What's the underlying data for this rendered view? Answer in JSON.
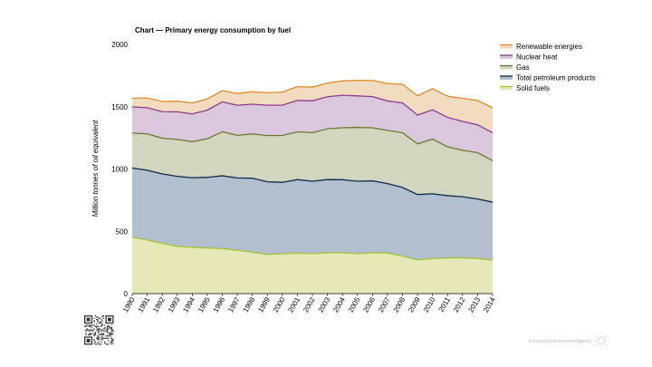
{
  "chart_data": {
    "type": "area",
    "stacked": true,
    "title": "Chart — Primary energy consumption by fuel",
    "ylabel": "Million tonnes of oil equivalent",
    "xlabel": "",
    "ylim": [
      0,
      2000
    ],
    "yticks": [
      0,
      500,
      1000,
      1500,
      2000
    ],
    "grid": false,
    "legend_position": "top-right",
    "x": [
      "1990",
      "1991",
      "1992",
      "1993",
      "1994",
      "1995",
      "1996",
      "1997",
      "1998",
      "1999",
      "2000",
      "2001",
      "2002",
      "2003",
      "2004",
      "2005",
      "2006",
      "2007",
      "2008",
      "2009",
      "2010",
      "2011",
      "2012",
      "2013",
      "2014"
    ],
    "series": [
      {
        "name": "Solid fuels",
        "fill": "#e6e8b8",
        "line": "#a9c238",
        "values": [
          452,
          431,
          403,
          379,
          371,
          366,
          361,
          347,
          332,
          315,
          320,
          324,
          320,
          329,
          328,
          320,
          328,
          326,
          301,
          270,
          282,
          286,
          287,
          281,
          268
        ]
      },
      {
        "name": "Total petroleum products",
        "fill": "#b1bfcf",
        "line": "#0d2b4a",
        "values": [
          556,
          559,
          558,
          562,
          559,
          567,
          585,
          581,
          594,
          582,
          573,
          591,
          582,
          586,
          586,
          582,
          577,
          557,
          551,
          525,
          519,
          500,
          490,
          478,
          466
        ]
      },
      {
        "name": "Gas",
        "fill": "#d2d6bf",
        "line": "#6b7a32",
        "values": [
          280,
          292,
          286,
          296,
          289,
          310,
          353,
          342,
          356,
          371,
          376,
          383,
          390,
          408,
          417,
          432,
          426,
          427,
          439,
          407,
          439,
          392,
          373,
          372,
          333
        ]
      },
      {
        "name": "Nuclear heat",
        "fill": "#dcc8dd",
        "line": "#8c3c8e",
        "values": [
          210,
          210,
          213,
          222,
          223,
          230,
          240,
          242,
          238,
          244,
          243,
          253,
          255,
          257,
          261,
          253,
          250,
          236,
          239,
          231,
          235,
          236,
          232,
          224,
          224
        ]
      },
      {
        "name": "Renewable energies",
        "fill": "#f2dcc0",
        "line": "#e08a2e",
        "values": [
          70,
          78,
          82,
          85,
          88,
          90,
          90,
          94,
          100,
          100,
          105,
          110,
          110,
          110,
          115,
          125,
          130,
          140,
          150,
          155,
          170,
          170,
          185,
          195,
          200
        ]
      }
    ]
  },
  "footer": {
    "credit": "European Environment Agency"
  }
}
